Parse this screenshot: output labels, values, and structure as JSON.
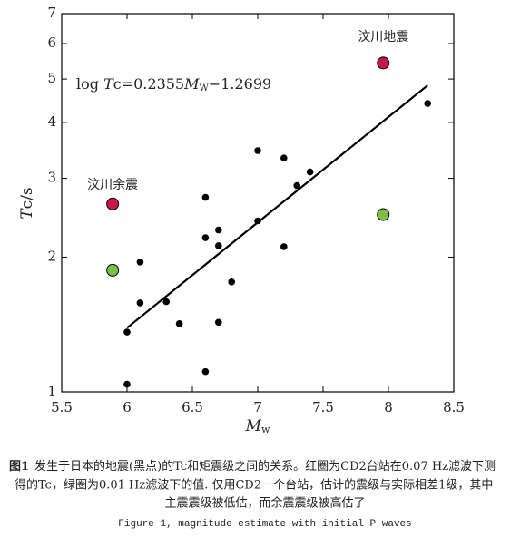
{
  "chart_data": {
    "type": "scatter",
    "y_label": {
      "italic": "T",
      "rest": "c/s"
    },
    "x_label": {
      "italic": "M",
      "sub": "w"
    },
    "xlim": [
      5.5,
      8.5
    ],
    "xticks": [
      5.5,
      6,
      6.5,
      7,
      7.5,
      8,
      8.5
    ],
    "ylim": [
      1,
      7
    ],
    "yticks": [
      1,
      2,
      3,
      4,
      5,
      6,
      7
    ],
    "log_y": true,
    "series": [
      {
        "color": "#000000",
        "x": [
          6.0,
          6.0,
          6.1,
          6.1,
          6.3,
          6.4,
          6.6,
          6.6,
          6.6,
          6.7,
          6.7,
          6.7,
          6.8,
          7.0,
          7.0,
          7.2,
          7.2,
          7.3,
          7.4,
          8.3
        ],
        "values": [
          1.04,
          1.36,
          1.95,
          1.58,
          1.59,
          1.42,
          2.72,
          2.21,
          1.11,
          2.3,
          2.12,
          1.43,
          1.76,
          3.46,
          2.41,
          3.33,
          2.11,
          2.89,
          3.1,
          4.41
        ]
      },
      {
        "color": "#c8184a",
        "x": [
          5.89,
          7.96
        ],
        "values": [
          2.63,
          5.43
        ]
      },
      {
        "color": "#7ac143",
        "x": [
          5.89,
          7.96
        ],
        "values": [
          1.87,
          2.49
        ]
      }
    ],
    "fit_line": {
      "color": "#000000",
      "x": [
        6.0,
        8.3
      ],
      "values": [
        1.39,
        4.84
      ]
    },
    "equation": [
      "log ",
      "T",
      "c=0.2355",
      "M",
      "W",
      "−1.2699"
    ],
    "annotations": [
      {
        "text": "汶川地震",
        "x": 7.96,
        "y": 6.2
      },
      {
        "text": "汶川余震",
        "x": 5.89,
        "y": 2.9
      }
    ],
    "caption": {
      "label": "图1",
      "lines": [
        "发生于日本的地震(黑点)的Tc和矩震级之间的关系。红圈为CD2台站在0.07 Hz滤波下测",
        "得的Tc，绿圈为0.01 Hz滤波下的值. 仅用CD2一个台站，估计的震级与实际相差1级，其中",
        "主震震级被低估，而余震震级被高估了"
      ],
      "english": "Figure 1, magnitude estimate with initial P waves"
    }
  }
}
